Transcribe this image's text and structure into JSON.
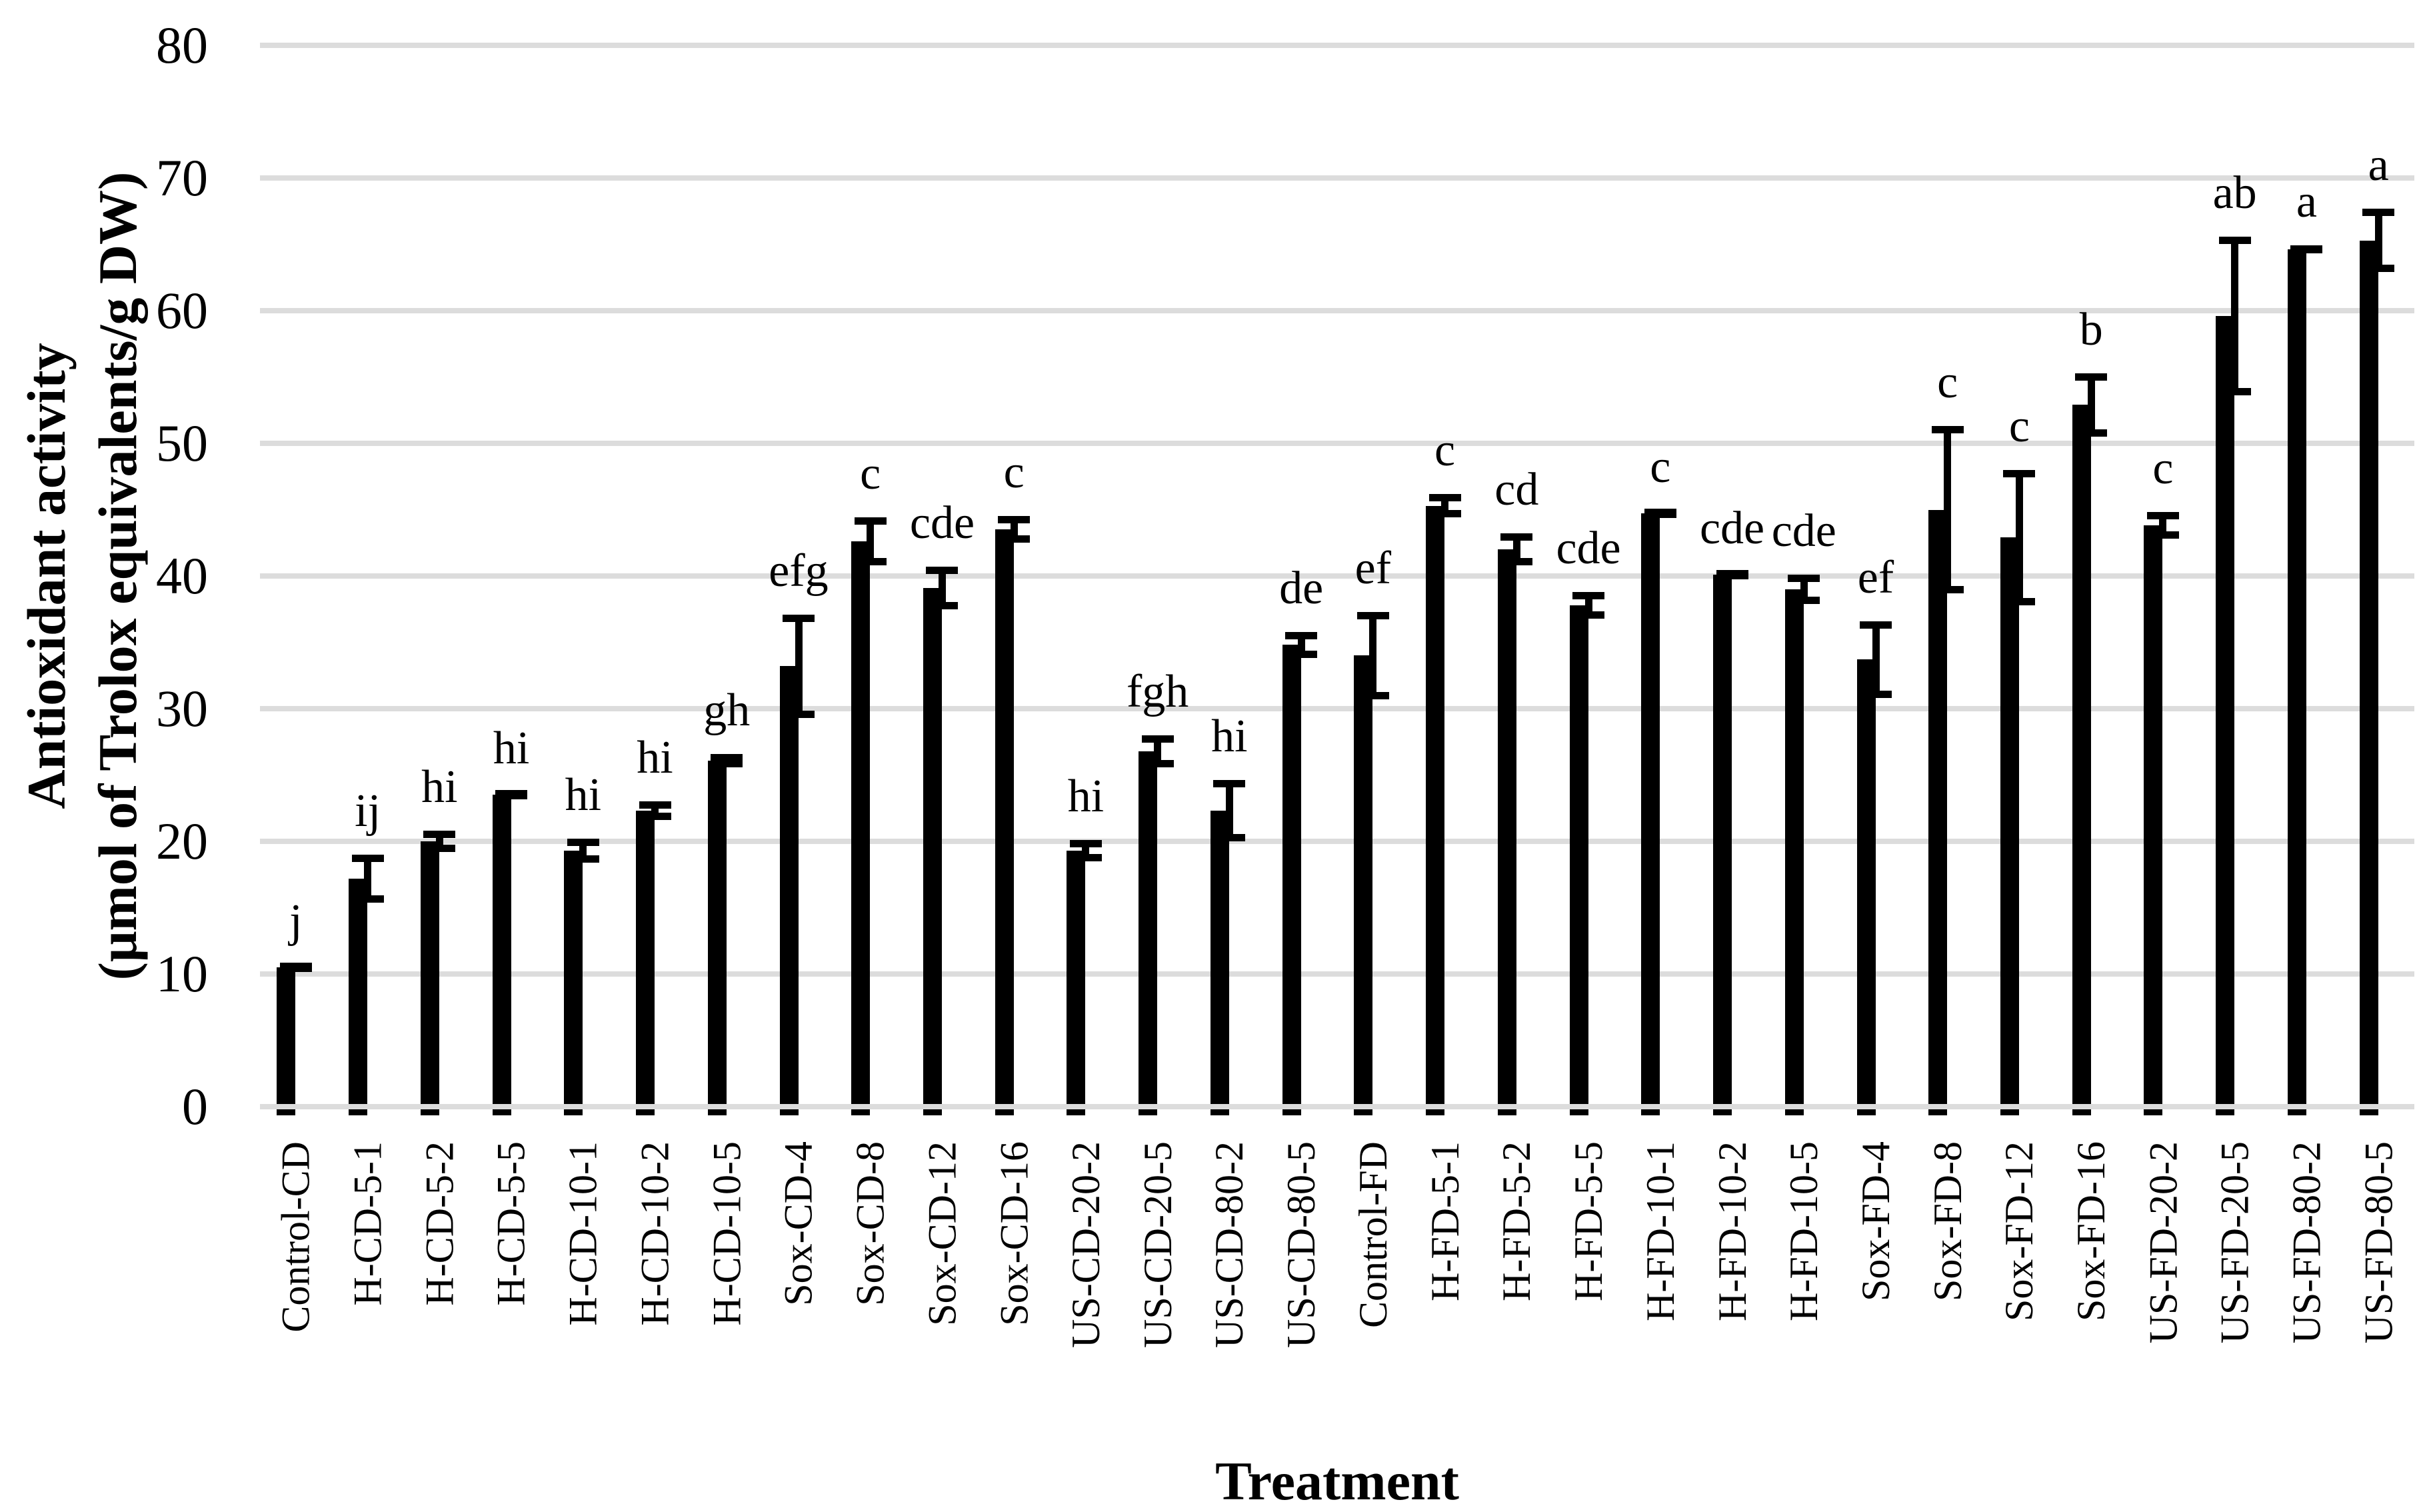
{
  "chart_data": {
    "type": "bar",
    "title": "",
    "xlabel": "Treatment",
    "ylabel_line1": "Antioxidant activity",
    "ylabel_line2": "(μmol of Trolox equivalents/g DW)",
    "ylim": [
      0,
      80
    ],
    "yticks": [
      0,
      10,
      20,
      30,
      40,
      50,
      60,
      70,
      80
    ],
    "grid": true,
    "legend": "none",
    "bar_color": "#E85DF8",
    "bar_border_color": "#000000",
    "gridline_color": "#DCDCDC",
    "error_bar_direction": "both",
    "categories": [
      "Control-CD",
      "H-CD-5-1",
      "H-CD-5-2",
      "H-CD-5-5",
      "H-CD-10-1",
      "H-CD-10-2",
      "H-CD-10-5",
      "Sox-CD-4",
      "Sox-CD-8",
      "Sox-CD-12",
      "Sox-CD-16",
      "US-CD-20-2",
      "US-CD-20-5",
      "US-CD-80-2",
      "US-CD-80-5",
      "Control-FD",
      "H-FD-5-1",
      "H-FD-5-2",
      "H-FD-5-5",
      "H-FD-10-1",
      "H-FD-10-2",
      "H-FD-10-5",
      "Sox-FD-4",
      "Sox-FD-8",
      "Sox-FD-12",
      "Sox-FD-16",
      "US-FD-20-2",
      "US-FD-20-5",
      "US-FD-80-2",
      "US-FD-80-5"
    ],
    "values": [
      10.5,
      17.2,
      20.0,
      23.5,
      19.3,
      22.3,
      26.1,
      33.2,
      42.6,
      39.1,
      43.5,
      19.3,
      26.8,
      22.3,
      34.8,
      34.0,
      45.3,
      42.0,
      37.8,
      44.7,
      40.1,
      39.0,
      33.7,
      45.0,
      42.9,
      52.9,
      43.8,
      59.6,
      64.6,
      65.3
    ],
    "errors": [
      0.2,
      1.8,
      0.8,
      0.2,
      0.9,
      0.7,
      0.5,
      3.9,
      1.8,
      1.6,
      1.0,
      0.8,
      1.2,
      2.3,
      1.0,
      3.3,
      0.9,
      1.2,
      1.0,
      0.2,
      0.2,
      1.1,
      2.9,
      6.3,
      5.1,
      2.4,
      1.0,
      6.0,
      0.3,
      2.4
    ],
    "letters": [
      "j",
      "ij",
      "hi",
      "hi",
      "hi",
      "hi",
      "gh",
      "efg",
      "c",
      "cde",
      "c",
      "hi",
      "fgh",
      "hi",
      "de",
      "ef",
      "c",
      "cd",
      "cde",
      "c",
      "cde",
      "cde",
      "ef",
      "c",
      "c",
      "b",
      "c",
      "ab",
      "a",
      "a"
    ]
  }
}
